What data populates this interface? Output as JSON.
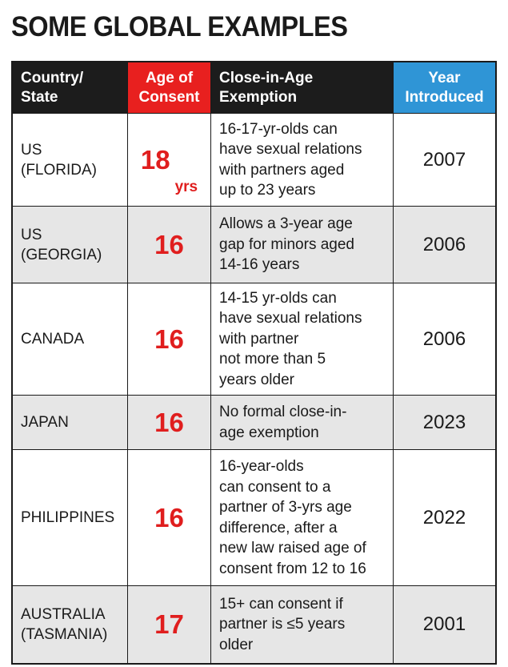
{
  "title": "SOME GLOBAL EXAMPLES",
  "headers": {
    "country": "Country/\nState",
    "age": "Age of\nConsent",
    "exemption": "Close-in-Age\nExemption",
    "year": "Year\nIntroduced"
  },
  "colors": {
    "header_dark": "#1c1c1c",
    "header_red": "#e8201f",
    "header_blue": "#2f95d6",
    "age_red": "#e01e1e",
    "row_grey": "#e6e6e6"
  },
  "rows": [
    {
      "country": "US\n(FLORIDA)",
      "age": "18",
      "age_unit": "yrs",
      "exemption": "16-17-yr-olds can\nhave sexual relations\nwith partners aged\nup to 23 years",
      "year": "2007"
    },
    {
      "country": "US\n(GEORGIA)",
      "age": "16",
      "age_unit": "",
      "exemption": "Allows a 3-year age\ngap for minors aged\n14-16 years",
      "year": "2006"
    },
    {
      "country": "CANADA",
      "age": "16",
      "age_unit": "",
      "exemption": "14-15 yr-olds can\nhave sexual relations\nwith partner\nnot more than 5\nyears older",
      "year": "2006"
    },
    {
      "country": "JAPAN",
      "age": "16",
      "age_unit": "",
      "exemption": "No formal close-in-\nage exemption",
      "year": "2023"
    },
    {
      "country": "PHILIPPINES",
      "age": "16",
      "age_unit": "",
      "exemption": "16-year-olds\ncan consent to a\npartner of 3-yrs age\ndifference, after a\nnew law raised age of\nconsent from 12 to 16",
      "year": "2022"
    },
    {
      "country": "AUSTRALIA\n(TASMANIA)",
      "age": "17",
      "age_unit": "",
      "exemption": "15+ can consent if\npartner is ≤5 years\nolder",
      "year": "2001"
    }
  ]
}
